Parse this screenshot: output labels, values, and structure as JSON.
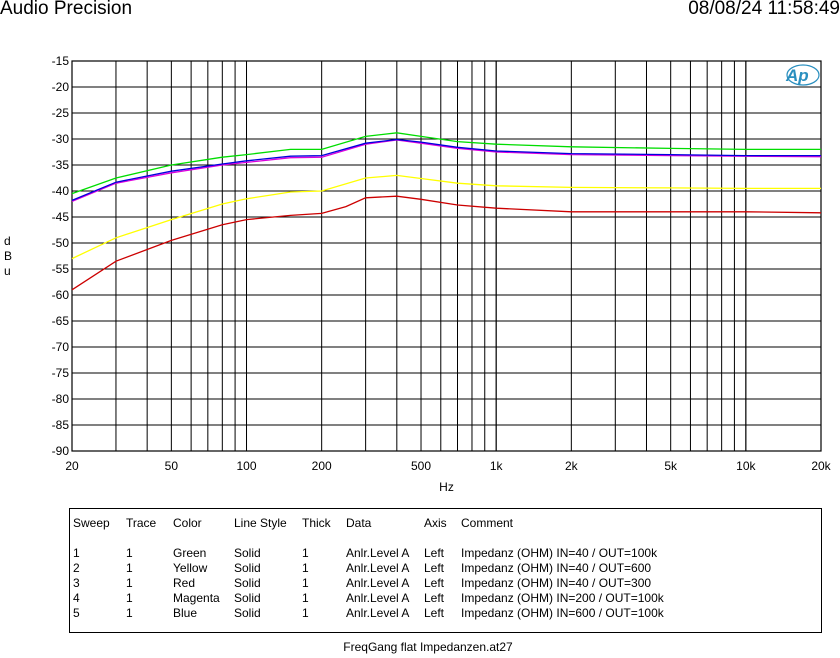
{
  "header": {
    "title": "Audio Precision",
    "datetime": "08/08/24 11:58:49"
  },
  "logo_text": "Ap",
  "chart_data": {
    "type": "line",
    "xlabel": "Hz",
    "ylabel": "dBu",
    "x_scale": "log",
    "xlim": [
      20,
      20000
    ],
    "ylim": [
      -90,
      -15
    ],
    "grid": true,
    "x_ticks": [
      20,
      50,
      100,
      200,
      500,
      1000,
      2000,
      5000,
      10000,
      20000
    ],
    "x_tick_labels": [
      "20",
      "50",
      "100",
      "200",
      "500",
      "1k",
      "2k",
      "5k",
      "10k",
      "20k"
    ],
    "y_ticks": [
      -15,
      -20,
      -25,
      -30,
      -35,
      -40,
      -45,
      -50,
      -55,
      -60,
      -65,
      -70,
      -75,
      -80,
      -85,
      -90
    ],
    "y_tick_labels": [
      "-15",
      "-20",
      "-25",
      "-30",
      "-35",
      "-40",
      "-45",
      "-50",
      "-55",
      "-60",
      "-65",
      "-70",
      "-75",
      "-80",
      "-85",
      "-90"
    ],
    "series": [
      {
        "color": "#00dd00",
        "x": [
          20,
          30,
          50,
          80,
          100,
          150,
          200,
          300,
          400,
          500,
          700,
          1000,
          2000,
          5000,
          10000,
          20000
        ],
        "y": [
          -40.5,
          -37.5,
          -35,
          -33.5,
          -33,
          -32,
          -32,
          -29.5,
          -28.8,
          -29.5,
          -30.5,
          -31,
          -31.5,
          -31.8,
          -32,
          -32
        ]
      },
      {
        "color": "#ffff00",
        "x": [
          20,
          30,
          50,
          80,
          100,
          150,
          200,
          300,
          400,
          500,
          700,
          1000,
          2000,
          5000,
          10000,
          20000
        ],
        "y": [
          -53,
          -49,
          -45.5,
          -42.5,
          -41.5,
          -40.2,
          -40,
          -37.5,
          -37,
          -37.6,
          -38.5,
          -39,
          -39.3,
          -39.4,
          -39.5,
          -39.5
        ]
      },
      {
        "color": "#cc0000",
        "x": [
          20,
          30,
          50,
          80,
          100,
          150,
          200,
          250,
          300,
          400,
          500,
          700,
          1000,
          2000,
          5000,
          10000,
          20000
        ],
        "y": [
          -59,
          -53.5,
          -49.5,
          -46.5,
          -45.5,
          -44.7,
          -44.3,
          -43,
          -41.3,
          -41,
          -41.6,
          -42.7,
          -43.3,
          -44,
          -44,
          -44,
          -44.2
        ]
      },
      {
        "color": "#dd00dd",
        "x": [
          20,
          30,
          50,
          80,
          100,
          150,
          200,
          300,
          400,
          500,
          700,
          1000,
          2000,
          5000,
          10000,
          20000
        ],
        "y": [
          -42,
          -38.5,
          -36.5,
          -35,
          -34.5,
          -33.6,
          -33.5,
          -31,
          -30.2,
          -30.8,
          -31.8,
          -32.5,
          -33,
          -33.2,
          -33.3,
          -33.4
        ]
      },
      {
        "color": "#0000dd",
        "x": [
          20,
          30,
          50,
          80,
          100,
          150,
          200,
          300,
          400,
          500,
          700,
          1000,
          2000,
          5000,
          10000,
          20000
        ],
        "y": [
          -41.8,
          -38.3,
          -36.2,
          -34.8,
          -34.2,
          -33.3,
          -33.2,
          -30.8,
          -30.1,
          -30.6,
          -31.6,
          -32.3,
          -32.8,
          -33,
          -33.2,
          -33.2
        ]
      }
    ]
  },
  "legend": {
    "headers": [
      "Sweep",
      "Trace",
      "Color",
      "Line Style",
      "Thick",
      "Data",
      "Axis",
      "Comment"
    ],
    "rows": [
      [
        "1",
        "1",
        "Green",
        "Solid",
        "1",
        "Anlr.Level A",
        "Left",
        "Impedanz (OHM) IN=40 / OUT=100k"
      ],
      [
        "2",
        "1",
        "Yellow",
        "Solid",
        "1",
        "Anlr.Level A",
        "Left",
        "Impedanz (OHM) IN=40 / OUT=600"
      ],
      [
        "3",
        "1",
        "Red",
        "Solid",
        "1",
        "Anlr.Level A",
        "Left",
        "Impedanz (OHM) IN=40 / OUT=300"
      ],
      [
        "4",
        "1",
        "Magenta",
        "Solid",
        "1",
        "Anlr.Level A",
        "Left",
        "Impedanz (OHM) IN=200 / OUT=100k"
      ],
      [
        "5",
        "1",
        "Blue",
        "Solid",
        "1",
        "Anlr.Level A",
        "Left",
        "Impedanz (OHM) IN=600 / OUT=100k"
      ]
    ]
  },
  "footer": "FreqGang flat Impedanzen.at27"
}
